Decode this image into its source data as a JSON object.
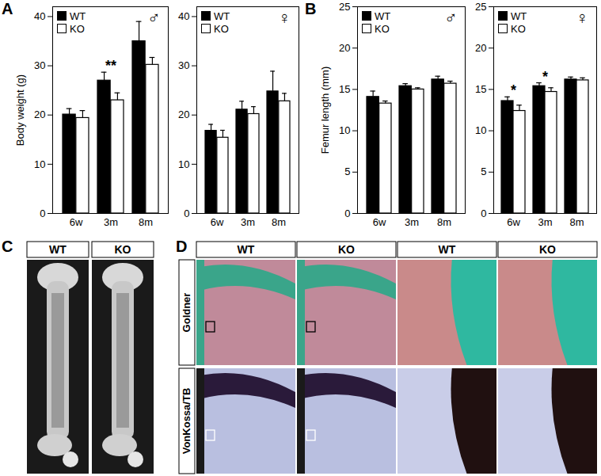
{
  "figure": {
    "panels": [
      "A",
      "B",
      "C",
      "D"
    ],
    "panel_C": {
      "columns": [
        "WT",
        "KO"
      ]
    },
    "panel_D": {
      "columns": [
        "WT",
        "KO",
        "WT",
        "KO"
      ],
      "rows": [
        "Goldner",
        "VonKossa/TB"
      ]
    }
  },
  "chart_data": [
    {
      "type": "bar",
      "title": "♂",
      "ylabel": "Body weight (g)",
      "categories": [
        "6w",
        "3m",
        "8m"
      ],
      "series": [
        {
          "name": "WT",
          "color": "#000000",
          "values": [
            20.1,
            27.0,
            35.0
          ],
          "errors": [
            1.2,
            1.7,
            4.0
          ]
        },
        {
          "name": "KO",
          "color": "#ffffff",
          "values": [
            19.4,
            23.0,
            30.2
          ],
          "errors": [
            1.5,
            1.5,
            1.5
          ]
        }
      ],
      "ylim": [
        0,
        42
      ],
      "yticks": [
        0,
        10,
        20,
        30,
        40
      ],
      "legend": "top-left",
      "annotations": [
        {
          "category": "3m",
          "text": "**"
        }
      ]
    },
    {
      "type": "bar",
      "title": "♀",
      "categories": [
        "6w",
        "3m",
        "8m"
      ],
      "series": [
        {
          "name": "WT",
          "color": "#000000",
          "values": [
            16.8,
            21.1,
            24.8
          ],
          "errors": [
            1.3,
            1.7,
            4.1
          ]
        },
        {
          "name": "KO",
          "color": "#ffffff",
          "values": [
            15.4,
            20.2,
            22.8
          ],
          "errors": [
            1.5,
            1.5,
            1.6
          ]
        }
      ],
      "ylim": [
        0,
        42
      ],
      "yticks": [
        0,
        10,
        20,
        30,
        40
      ],
      "legend": "top-left"
    },
    {
      "type": "bar",
      "title": "♂",
      "ylabel": "Femur length (mm)",
      "categories": [
        "6w",
        "3m",
        "8m"
      ],
      "series": [
        {
          "name": "WT",
          "color": "#000000",
          "values": [
            14.1,
            15.4,
            16.2
          ],
          "errors": [
            0.7,
            0.3,
            0.4
          ]
        },
        {
          "name": "KO",
          "color": "#ffffff",
          "values": [
            13.3,
            15.0,
            15.7
          ],
          "errors": [
            0.3,
            0.2,
            0.3
          ]
        }
      ],
      "ylim": [
        0,
        25
      ],
      "yticks": [
        0,
        5,
        10,
        15,
        20,
        25
      ],
      "legend": "top-left"
    },
    {
      "type": "bar",
      "title": "♀",
      "categories": [
        "6w",
        "3m",
        "8m"
      ],
      "series": [
        {
          "name": "WT",
          "color": "#000000",
          "values": [
            13.6,
            15.4,
            16.2
          ],
          "errors": [
            0.5,
            0.4,
            0.3
          ]
        },
        {
          "name": "KO",
          "color": "#ffffff",
          "values": [
            12.4,
            14.7,
            16.1
          ],
          "errors": [
            0.7,
            0.5,
            0.3
          ]
        }
      ],
      "ylim": [
        0,
        25
      ],
      "yticks": [
        0,
        5,
        10,
        15,
        20,
        25
      ],
      "legend": "top-left",
      "annotations": [
        {
          "category": "6w",
          "text": "*"
        },
        {
          "category": "3m",
          "text": "*"
        }
      ]
    }
  ]
}
